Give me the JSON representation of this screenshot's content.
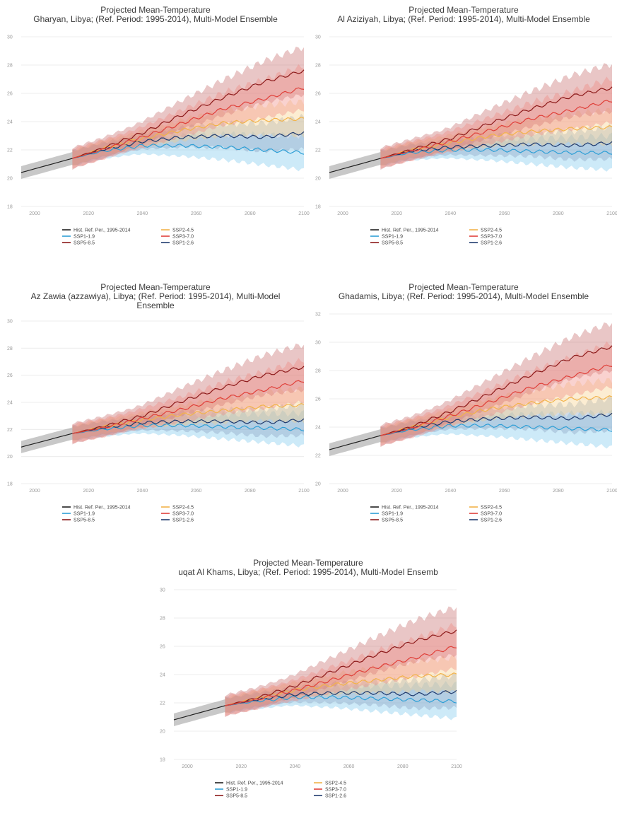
{
  "chart_data": [
    {
      "type": "line",
      "title": "Projected Mean-Temperature",
      "subtitle": "Gharyan, Libya; (Ref. Period: 1995-2014), Multi-Model Ensemble",
      "ylim": [
        18,
        30
      ],
      "yticks": [
        "18",
        "20",
        "22",
        "24",
        "26",
        "28",
        "30"
      ],
      "xlim": [
        1995,
        2100
      ],
      "xticks": [
        "2000",
        "2020",
        "2040",
        "2060",
        "2080",
        "2100"
      ],
      "x": [
        1995,
        2014,
        2025,
        2040,
        2055,
        2070,
        2085,
        2100
      ],
      "grid": true,
      "legend_position": "bottom",
      "series": [
        {
          "name": "Hist. Ref. Per., 1995-2014",
          "values": [
            20.4,
            21.4,
            null,
            null,
            null,
            null,
            null,
            null
          ]
        },
        {
          "name": "SSP1-1.9",
          "values": [
            null,
            21.4,
            21.9,
            22.3,
            22.3,
            22.2,
            22.0,
            21.8
          ]
        },
        {
          "name": "SSP1-2.6",
          "values": [
            null,
            21.4,
            22.0,
            22.6,
            22.9,
            23.0,
            22.9,
            23.2
          ]
        },
        {
          "name": "SSP2-4.5",
          "values": [
            null,
            21.4,
            22.1,
            22.8,
            23.4,
            23.9,
            24.1,
            24.2
          ]
        },
        {
          "name": "SSP3-7.0",
          "values": [
            null,
            21.4,
            22.0,
            22.9,
            23.9,
            24.9,
            25.6,
            26.4
          ]
        },
        {
          "name": "SSP5-8.5",
          "values": [
            null,
            21.4,
            22.1,
            23.2,
            24.5,
            25.7,
            26.8,
            27.6
          ]
        }
      ]
    },
    {
      "type": "line",
      "title": "Projected Mean-Temperature",
      "subtitle": "Al Aziziyah, Libya; (Ref. Period: 1995-2014), Multi-Model Ensemble",
      "ylim": [
        18,
        30
      ],
      "yticks": [
        "18",
        "20",
        "22",
        "24",
        "26",
        "28",
        "30"
      ],
      "xlim": [
        1995,
        2100
      ],
      "xticks": [
        "2000",
        "2020",
        "2040",
        "2060",
        "2080",
        "2100"
      ],
      "x": [
        1995,
        2014,
        2025,
        2040,
        2055,
        2070,
        2085,
        2100
      ],
      "grid": true,
      "legend_position": "bottom",
      "series": [
        {
          "name": "Hist. Ref. Per., 1995-2014",
          "values": [
            20.4,
            21.4,
            null,
            null,
            null,
            null,
            null,
            null
          ]
        },
        {
          "name": "SSP1-1.9",
          "values": [
            null,
            21.4,
            21.8,
            22.0,
            22.0,
            21.9,
            21.8,
            21.8
          ]
        },
        {
          "name": "SSP1-2.6",
          "values": [
            null,
            21.4,
            21.9,
            22.2,
            22.3,
            22.4,
            22.3,
            22.5
          ]
        },
        {
          "name": "SSP2-4.5",
          "values": [
            null,
            21.4,
            22.0,
            22.5,
            23.0,
            23.3,
            23.5,
            23.6
          ]
        },
        {
          "name": "SSP3-7.0",
          "values": [
            null,
            21.4,
            21.9,
            22.6,
            23.4,
            24.2,
            24.8,
            25.5
          ]
        },
        {
          "name": "SSP5-8.5",
          "values": [
            null,
            21.4,
            22.0,
            22.8,
            23.9,
            24.9,
            25.8,
            26.4
          ]
        }
      ]
    },
    {
      "type": "line",
      "title": "Projected Mean-Temperature",
      "subtitle": "Az Zawia (azzawiya), Libya; (Ref. Period: 1995-2014), Multi-Model",
      "subtitle2": "Ensemble",
      "ylim": [
        18,
        30
      ],
      "yticks": [
        "18",
        "20",
        "22",
        "24",
        "26",
        "28",
        "30"
      ],
      "xlim": [
        1995,
        2100
      ],
      "xticks": [
        "2000",
        "2020",
        "2040",
        "2060",
        "2080",
        "2100"
      ],
      "x": [
        1995,
        2014,
        2025,
        2040,
        2055,
        2070,
        2085,
        2100
      ],
      "grid": true,
      "legend_position": "bottom",
      "series": [
        {
          "name": "Hist. Ref. Per., 1995-2014",
          "values": [
            20.7,
            21.7,
            null,
            null,
            null,
            null,
            null,
            null
          ]
        },
        {
          "name": "SSP1-1.9",
          "values": [
            null,
            21.7,
            22.0,
            22.3,
            22.3,
            22.2,
            22.1,
            22.0
          ]
        },
        {
          "name": "SSP1-2.6",
          "values": [
            null,
            21.7,
            22.1,
            22.5,
            22.6,
            22.6,
            22.5,
            22.7
          ]
        },
        {
          "name": "SSP2-4.5",
          "values": [
            null,
            21.7,
            22.2,
            22.7,
            23.1,
            23.4,
            23.7,
            23.8
          ]
        },
        {
          "name": "SSP3-7.0",
          "values": [
            null,
            21.7,
            22.1,
            22.8,
            23.5,
            24.3,
            24.9,
            25.6
          ]
        },
        {
          "name": "SSP5-8.5",
          "values": [
            null,
            21.7,
            22.2,
            23.0,
            24.1,
            25.1,
            26.0,
            26.6
          ]
        }
      ]
    },
    {
      "type": "line",
      "title": "Projected Mean-Temperature",
      "subtitle": "Ghadamis, Libya; (Ref. Period: 1995-2014), Multi-Model Ensemble",
      "ylim": [
        20,
        32
      ],
      "yticks": [
        "20",
        "22",
        "24",
        "26",
        "28",
        "30",
        "32"
      ],
      "xlim": [
        1995,
        2100
      ],
      "xticks": [
        "2000",
        "2020",
        "2040",
        "2060",
        "2080",
        "2100"
      ],
      "x": [
        1995,
        2014,
        2025,
        2040,
        2055,
        2070,
        2085,
        2100
      ],
      "grid": true,
      "legend_position": "bottom",
      "series": [
        {
          "name": "Hist. Ref. Per., 1995-2014",
          "values": [
            22.4,
            23.4,
            null,
            null,
            null,
            null,
            null,
            null
          ]
        },
        {
          "name": "SSP1-1.9",
          "values": [
            null,
            23.4,
            23.8,
            24.1,
            24.1,
            24.0,
            23.9,
            23.8
          ]
        },
        {
          "name": "SSP1-2.6",
          "values": [
            null,
            23.4,
            23.9,
            24.4,
            24.6,
            24.7,
            24.6,
            24.9
          ]
        },
        {
          "name": "SSP2-4.5",
          "values": [
            null,
            23.4,
            24.0,
            24.7,
            25.3,
            25.7,
            26.0,
            26.1
          ]
        },
        {
          "name": "SSP3-7.0",
          "values": [
            null,
            23.4,
            23.9,
            24.8,
            25.8,
            26.8,
            27.6,
            28.4
          ]
        },
        {
          "name": "SSP5-8.5",
          "values": [
            null,
            23.4,
            24.0,
            25.1,
            26.4,
            27.7,
            28.9,
            29.7
          ]
        }
      ]
    },
    {
      "type": "line",
      "title": "Projected Mean-Temperature",
      "subtitle": "uqat Al Khams, Libya; (Ref. Period: 1995-2014), Multi-Model Ensemb",
      "ylim": [
        18,
        30
      ],
      "yticks": [
        "18",
        "20",
        "22",
        "24",
        "26",
        "28",
        "30"
      ],
      "xlim": [
        1995,
        2100
      ],
      "xticks": [
        "2000",
        "2020",
        "2040",
        "2060",
        "2080",
        "2100"
      ],
      "x": [
        1995,
        2014,
        2025,
        2040,
        2055,
        2070,
        2085,
        2100
      ],
      "grid": true,
      "legend_position": "bottom",
      "series": [
        {
          "name": "Hist. Ref. Per., 1995-2014",
          "values": [
            20.8,
            21.8,
            null,
            null,
            null,
            null,
            null,
            null
          ]
        },
        {
          "name": "SSP1-1.9",
          "values": [
            null,
            21.8,
            22.1,
            22.4,
            22.4,
            22.3,
            22.2,
            22.1
          ]
        },
        {
          "name": "SSP1-2.6",
          "values": [
            null,
            21.8,
            22.2,
            22.6,
            22.7,
            22.7,
            22.6,
            22.8
          ]
        },
        {
          "name": "SSP2-4.5",
          "values": [
            null,
            21.8,
            22.3,
            22.9,
            23.3,
            23.6,
            23.9,
            24.0
          ]
        },
        {
          "name": "SSP3-7.0",
          "values": [
            null,
            21.8,
            22.2,
            22.9,
            23.7,
            24.5,
            25.2,
            26.0
          ]
        },
        {
          "name": "SSP5-8.5",
          "values": [
            null,
            21.8,
            22.3,
            23.2,
            24.3,
            25.4,
            26.4,
            27.1
          ]
        }
      ]
    }
  ],
  "series_colors": {
    "Hist. Ref. Per., 1995-2014": "#1f1f1f",
    "SSP1-1.9": "#2e9fd6",
    "SSP1-2.6": "#1f3a6e",
    "SSP2-4.5": "#f2b34a",
    "SSP3-7.0": "#e0403a",
    "SSP5-8.5": "#8c1a1a"
  },
  "band_colors": {
    "Hist. Ref. Per., 1995-2014": "#9a9a9a",
    "SSP1-1.9": "#7cc8ec",
    "SSP1-2.6": "#8aa0c0",
    "SSP2-4.5": "#f8d08a",
    "SSP3-7.0": "#ef8a80",
    "SSP5-8.5": "#c46a6a"
  }
}
